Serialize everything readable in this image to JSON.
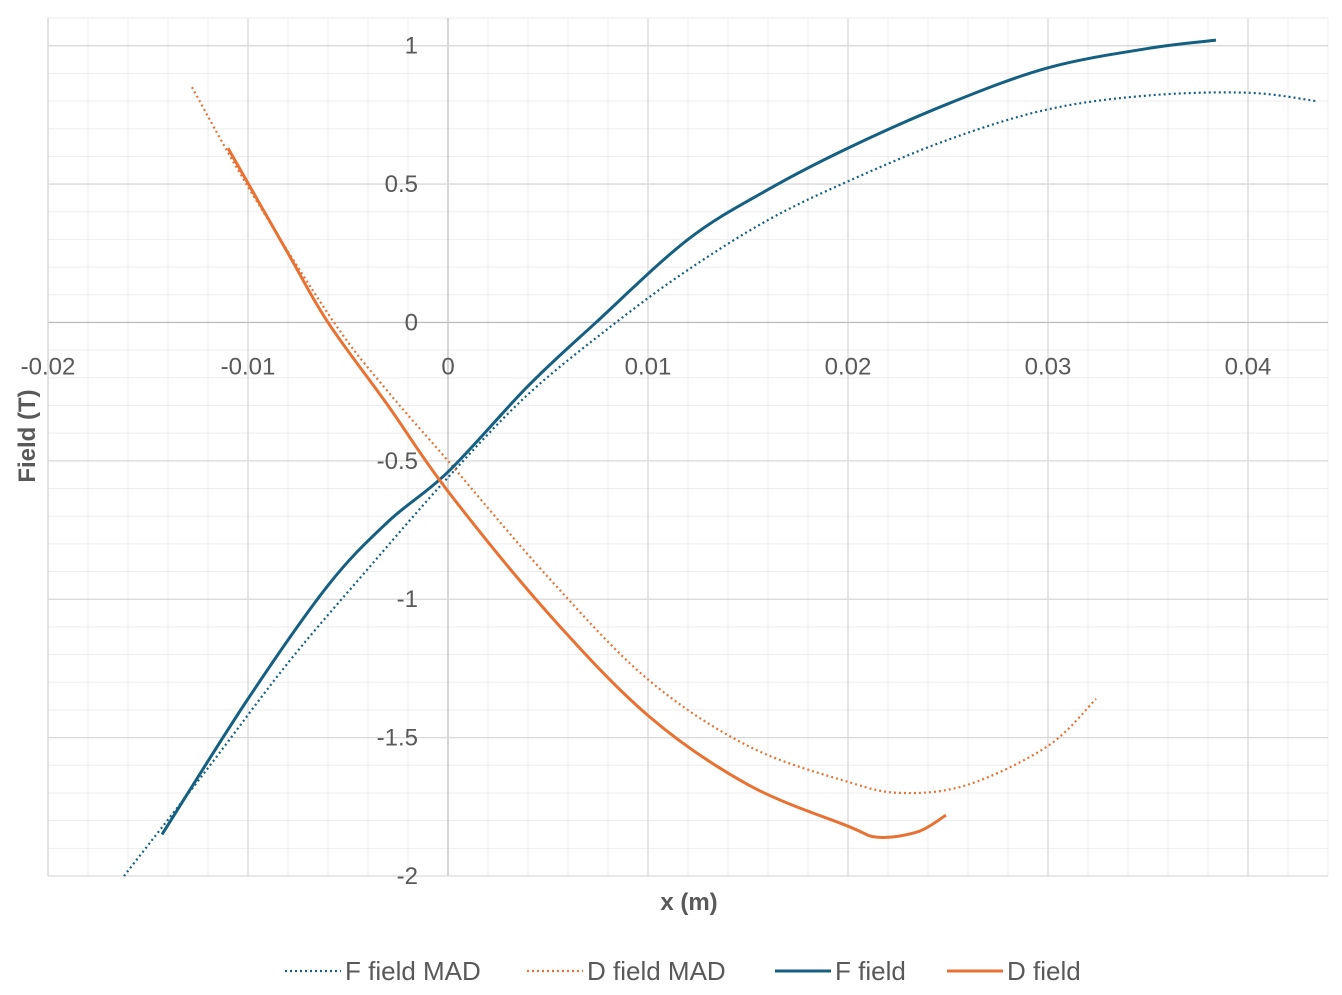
{
  "chart_data": {
    "type": "scatter",
    "title": "",
    "xlabel": "x (m)",
    "ylabel": "Field (T)",
    "xlim": [
      -0.02,
      0.044
    ],
    "ylim": [
      -2,
      1.1
    ],
    "xticks": [
      -0.02,
      -0.01,
      0,
      0.01,
      0.02,
      0.03,
      0.04
    ],
    "xtick_labels": [
      "-0.02",
      "-0.01",
      "0",
      "0.01",
      "0.02",
      "0.03",
      "0.04"
    ],
    "yticks": [
      -2,
      -1.5,
      -1,
      -0.5,
      0,
      0.5,
      1
    ],
    "ytick_labels": [
      "-2",
      "-1.5",
      "-1",
      "-0.5",
      "0",
      "0.5",
      "1"
    ],
    "grid": true,
    "legend_position": "bottom",
    "series": [
      {
        "name": "F field MAD",
        "color": "#156082",
        "style": "dotted",
        "x": [
          -0.0162,
          -0.012,
          -0.008,
          -0.004,
          0,
          0.004,
          0.0084,
          0.012,
          0.016,
          0.02,
          0.025,
          0.03,
          0.035,
          0.04,
          0.0434
        ],
        "y": [
          -2.0,
          -1.61,
          -1.23,
          -0.89,
          -0.56,
          -0.26,
          0.0,
          0.19,
          0.37,
          0.51,
          0.66,
          0.77,
          0.82,
          0.83,
          0.8
        ]
      },
      {
        "name": "D field MAD",
        "color": "#E97132",
        "style": "dotted",
        "x": [
          -0.0128,
          -0.01,
          -0.0057,
          -0.003,
          0,
          0.005,
          0.01,
          0.015,
          0.02,
          0.0227,
          0.026,
          0.03,
          0.0324
        ],
        "y": [
          0.85,
          0.49,
          0.0,
          -0.25,
          -0.5,
          -0.92,
          -1.29,
          -1.53,
          -1.66,
          -1.7,
          -1.67,
          -1.53,
          -1.36
        ]
      },
      {
        "name": "F field",
        "color": "#156082",
        "style": "solid",
        "x": [
          -0.0143,
          -0.01,
          -0.006,
          -0.003,
          0,
          0.004,
          0.0074,
          0.012,
          0.016,
          0.02,
          0.025,
          0.03,
          0.035,
          0.0384
        ],
        "y": [
          -1.85,
          -1.36,
          -0.95,
          -0.72,
          -0.54,
          -0.23,
          0.0,
          0.3,
          0.48,
          0.63,
          0.79,
          0.92,
          0.99,
          1.02
        ]
      },
      {
        "name": "D field",
        "color": "#E97132",
        "style": "solid",
        "x": [
          -0.011,
          -0.008,
          -0.006,
          -0.003,
          0,
          0.005,
          0.01,
          0.015,
          0.02,
          0.0215,
          0.0235,
          0.0249
        ],
        "y": [
          0.63,
          0.25,
          0.0,
          -0.3,
          -0.61,
          -1.05,
          -1.42,
          -1.67,
          -1.82,
          -1.86,
          -1.84,
          -1.78
        ]
      }
    ]
  }
}
